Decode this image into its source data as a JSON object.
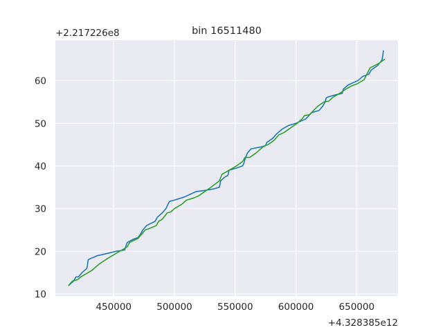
{
  "chart_data": {
    "type": "line",
    "title": "bin 16511480",
    "xlabel": "",
    "ylabel": "",
    "x_offset_label": "+4.328385e12",
    "y_offset_label": "+2.217226e8",
    "xlim": [
      402000,
      684000
    ],
    "ylim": [
      9.5,
      69.5
    ],
    "x_ticks": [
      450000,
      500000,
      550000,
      600000,
      650000
    ],
    "x_tick_labels": [
      "450000",
      "500000",
      "550000",
      "600000",
      "650000"
    ],
    "y_ticks": [
      10,
      20,
      30,
      40,
      50,
      60
    ],
    "y_tick_labels": [
      "10",
      "20",
      "30",
      "40",
      "50",
      "60"
    ],
    "grid": true,
    "background": "#eaeaf2",
    "series": [
      {
        "color": "#1f77b4",
        "x": [
          413000,
          417000,
          419000,
          421000,
          424000,
          428000,
          429000,
          431000,
          437000,
          445000,
          452000,
          459000,
          461000,
          464000,
          466000,
          470000,
          472000,
          474000,
          477000,
          479000,
          484000,
          486000,
          490000,
          493000,
          495000,
          496000,
          500000,
          508000,
          514000,
          518000,
          526000,
          532000,
          537000,
          538000,
          541000,
          544000,
          545000,
          551000,
          556000,
          557000,
          558000,
          560000,
          563000,
          572000,
          575000,
          576000,
          581000,
          584000,
          586000,
          589000,
          594000,
          600000,
          608000,
          613000,
          619000,
          622000,
          624000,
          625000,
          628000,
          633000,
          638000,
          639000,
          643000,
          647000,
          651000,
          655000,
          660000,
          662000,
          667000,
          670000,
          671000,
          672000
        ],
        "y": [
          12,
          13,
          14,
          14,
          15,
          16,
          18,
          18.3,
          19,
          19.5,
          20,
          20.3,
          22,
          22.5,
          22.8,
          23.2,
          24,
          25,
          26,
          26.3,
          27,
          28,
          29,
          30,
          31.2,
          31.7,
          32,
          32.7,
          33.5,
          34,
          34.3,
          34.6,
          35,
          36.5,
          37.3,
          37.8,
          39,
          39.5,
          40,
          40.5,
          41.5,
          43,
          44,
          44.5,
          44.8,
          45.5,
          46.5,
          47.5,
          48,
          48.7,
          49.5,
          50,
          51,
          52.5,
          53,
          54,
          55,
          56,
          56.3,
          56.7,
          57,
          58,
          59,
          59.5,
          60,
          61,
          61.5,
          62.5,
          63.5,
          64.5,
          65,
          67
        ]
      },
      {
        "color": "#2ca02c",
        "x": [
          413000,
          416000,
          420000,
          423000,
          429000,
          432000,
          438000,
          445000,
          452000,
          458000,
          461000,
          463000,
          466000,
          470000,
          473000,
          476000,
          479000,
          485000,
          487000,
          490000,
          494000,
          497000,
          500000,
          506000,
          510000,
          516000,
          520000,
          525000,
          530000,
          537000,
          539000,
          545000,
          551000,
          556000,
          558000,
          560000,
          562000,
          567000,
          573000,
          577000,
          582000,
          586000,
          590000,
          596000,
          601000,
          605000,
          607000,
          611000,
          618000,
          623000,
          627000,
          630000,
          637000,
          641000,
          646000,
          650000,
          656000,
          661000,
          668000,
          673000
        ],
        "y": [
          12,
          13,
          13.3,
          14,
          15,
          15.5,
          17,
          18.3,
          19.5,
          20.5,
          21,
          22,
          22.5,
          23,
          24,
          25,
          25.3,
          26,
          27,
          27.5,
          29,
          29.2,
          30,
          31,
          32,
          32.5,
          33,
          34,
          35,
          36.5,
          38,
          39,
          40,
          41,
          42,
          42,
          42,
          43,
          44.5,
          45,
          46,
          47.3,
          47.8,
          49,
          50,
          51,
          51.8,
          52,
          54,
          55,
          55.2,
          56,
          57.2,
          58,
          58.8,
          59.2,
          60.2,
          63,
          64,
          65
        ]
      }
    ]
  }
}
